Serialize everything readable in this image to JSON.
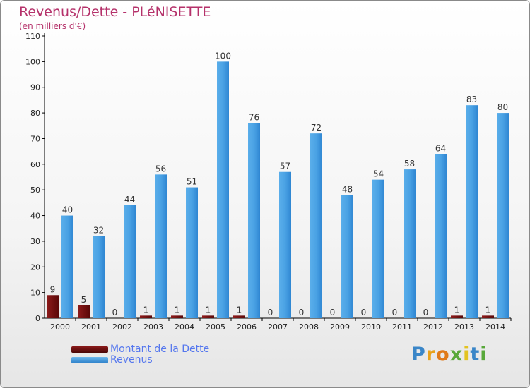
{
  "chart_data": {
    "type": "bar",
    "title": "Revenus/Dette - PLéNISETTE",
    "subtitle": "(en milliers d'€)",
    "xlabel": "",
    "ylabel": "",
    "ylim": [
      0,
      110
    ],
    "yticks": [
      0,
      10,
      20,
      30,
      40,
      50,
      60,
      70,
      80,
      90,
      100,
      110
    ],
    "grid": false,
    "legend": "bottom-left",
    "categories": [
      "2000",
      "2001",
      "2002",
      "2003",
      "2004",
      "2005",
      "2006",
      "2007",
      "2008",
      "2009",
      "2010",
      "2011",
      "2012",
      "2013",
      "2014"
    ],
    "series": [
      {
        "name": "Montant de la Dette",
        "color": "#6b0d0d",
        "values": [
          9,
          5,
          0,
          1,
          1,
          1,
          1,
          0,
          0,
          0,
          0,
          0,
          0,
          1,
          1
        ]
      },
      {
        "name": "Revenus",
        "color": "#3d94dc",
        "values": [
          40,
          32,
          44,
          56,
          51,
          100,
          76,
          57,
          72,
          48,
          54,
          58,
          64,
          83,
          80
        ]
      }
    ]
  },
  "brand": {
    "letters": [
      "P",
      "r",
      "o",
      "x",
      "i",
      "t",
      "i"
    ],
    "colors": [
      "#3a86c8",
      "#e8a21a",
      "#e07a19",
      "#58a83a",
      "#e3c320",
      "#3a86c8",
      "#58a83a"
    ]
  }
}
